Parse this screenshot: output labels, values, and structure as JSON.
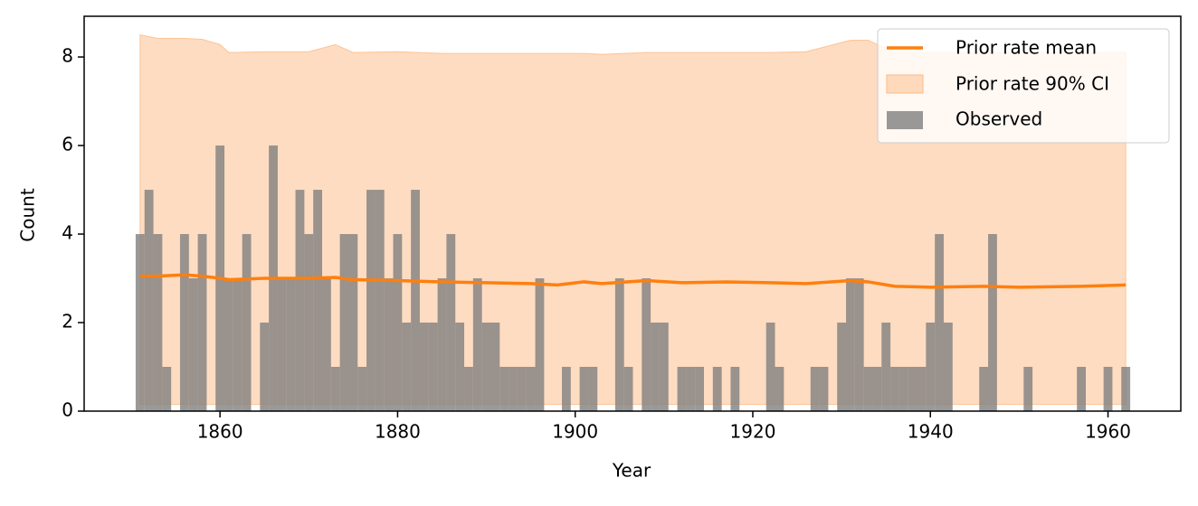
{
  "chart_data": {
    "type": "bar-band",
    "x_label": "Year",
    "y_label": "Count",
    "xlim": [
      1844.7,
      1968.2
    ],
    "ylim": [
      0,
      8.92
    ],
    "xticks": [
      1860,
      1880,
      1900,
      1920,
      1940,
      1960
    ],
    "yticks": [
      0,
      2,
      4,
      6,
      8
    ],
    "legend": "upper right",
    "x": [
      1851,
      1852,
      1853,
      1854,
      1855,
      1856,
      1857,
      1858,
      1859,
      1860,
      1861,
      1862,
      1863,
      1864,
      1865,
      1866,
      1867,
      1868,
      1869,
      1870,
      1871,
      1872,
      1873,
      1874,
      1875,
      1876,
      1877,
      1878,
      1879,
      1880,
      1881,
      1882,
      1883,
      1884,
      1885,
      1886,
      1887,
      1888,
      1889,
      1890,
      1891,
      1892,
      1893,
      1894,
      1895,
      1896,
      1897,
      1898,
      1899,
      1900,
      1901,
      1902,
      1903,
      1904,
      1905,
      1906,
      1907,
      1908,
      1909,
      1910,
      1911,
      1912,
      1913,
      1914,
      1915,
      1916,
      1917,
      1918,
      1919,
      1920,
      1921,
      1922,
      1923,
      1924,
      1925,
      1926,
      1927,
      1928,
      1929,
      1930,
      1931,
      1932,
      1933,
      1934,
      1935,
      1936,
      1937,
      1938,
      1939,
      1940,
      1941,
      1942,
      1943,
      1944,
      1945,
      1946,
      1947,
      1948,
      1949,
      1950,
      1951,
      1952,
      1953,
      1954,
      1955,
      1956,
      1957,
      1958,
      1959,
      1960,
      1961,
      1962
    ],
    "bars": {
      "name": "Observed",
      "color": "#7f7f7f",
      "values": [
        4,
        5,
        4,
        1,
        0,
        4,
        3,
        4,
        0,
        6,
        3,
        3,
        4,
        0,
        2,
        6,
        3,
        3,
        5,
        4,
        5,
        3,
        1,
        4,
        4,
        1,
        5,
        5,
        3,
        4,
        2,
        5,
        2,
        2,
        3,
        4,
        2,
        1,
        3,
        2,
        2,
        1,
        1,
        1,
        1,
        3,
        0,
        0,
        1,
        0,
        1,
        1,
        0,
        0,
        3,
        1,
        0,
        3,
        2,
        2,
        0,
        1,
        1,
        1,
        0,
        1,
        0,
        1,
        0,
        0,
        0,
        2,
        1,
        0,
        0,
        0,
        1,
        1,
        0,
        2,
        3,
        3,
        1,
        1,
        2,
        1,
        1,
        1,
        1,
        2,
        4,
        2,
        0,
        0,
        0,
        1,
        4,
        0,
        0,
        0,
        1,
        0,
        0,
        0,
        0,
        0,
        1,
        0,
        0,
        1,
        0,
        1
      ]
    },
    "line_x": [
      1851,
      1853,
      1856,
      1858,
      1860,
      1861,
      1865,
      1870,
      1873,
      1875,
      1880,
      1885,
      1890,
      1895,
      1898,
      1901,
      1903,
      1908,
      1912,
      1917,
      1922,
      1926,
      1931,
      1933,
      1936,
      1940,
      1946,
      1950,
      1957,
      1962
    ],
    "mean": {
      "name": "Prior rate mean",
      "color": "#ff7f0e",
      "values": [
        3.05,
        3.05,
        3.08,
        3.05,
        3.0,
        2.97,
        3.0,
        3.0,
        3.02,
        2.97,
        2.95,
        2.92,
        2.9,
        2.88,
        2.85,
        2.92,
        2.88,
        2.95,
        2.9,
        2.92,
        2.9,
        2.88,
        2.95,
        2.92,
        2.82,
        2.8,
        2.82,
        2.8,
        2.82,
        2.85
      ]
    },
    "ci": {
      "name": "Prior rate 90% CI",
      "color": "#fdba84",
      "lower": [
        0.15,
        0.15,
        0.15,
        0.15,
        0.15,
        0.15,
        0.15,
        0.15,
        0.15,
        0.15,
        0.15,
        0.15,
        0.15,
        0.15,
        0.15,
        0.15,
        0.15,
        0.15,
        0.15,
        0.15,
        0.15,
        0.15,
        0.15,
        0.15,
        0.15,
        0.15,
        0.15,
        0.15,
        0.15,
        0.15
      ],
      "upper": [
        8.5,
        8.42,
        8.42,
        8.4,
        8.28,
        8.1,
        8.12,
        8.12,
        8.28,
        8.1,
        8.12,
        8.08,
        8.08,
        8.08,
        8.08,
        8.08,
        8.06,
        8.1,
        8.1,
        8.1,
        8.1,
        8.12,
        8.38,
        8.38,
        8.1,
        8.1,
        8.1,
        8.1,
        8.1,
        8.1
      ]
    }
  }
}
